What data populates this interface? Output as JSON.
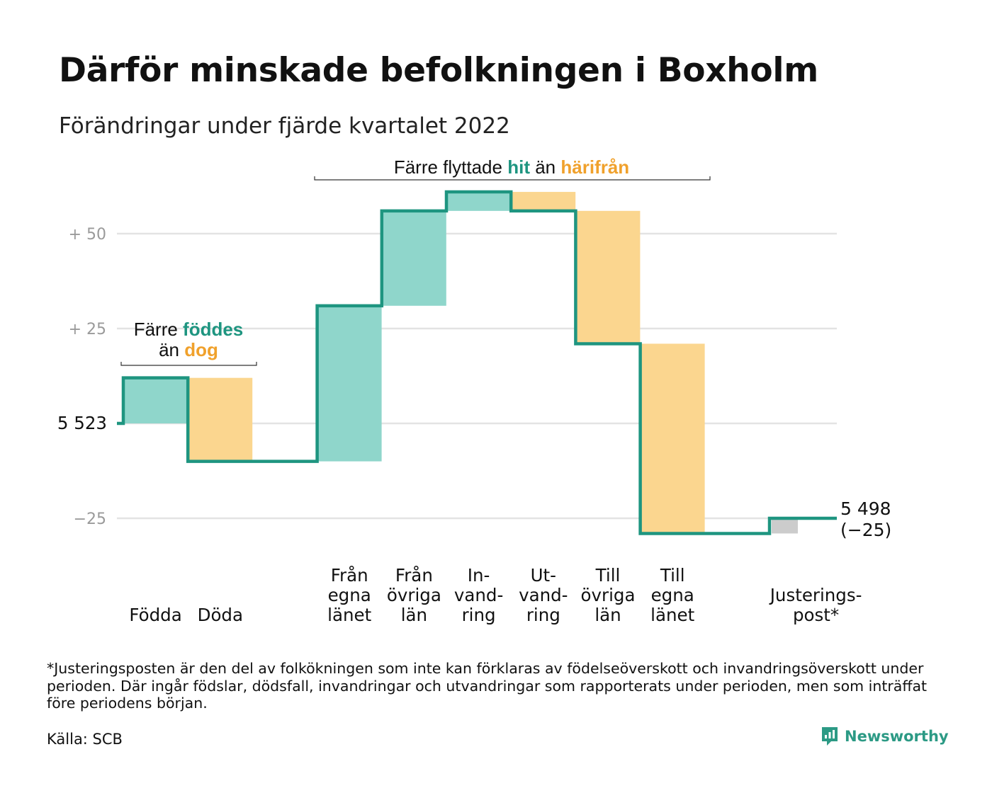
{
  "title": "Därför minskade befolkningen i Boxholm",
  "subtitle": "Förändringar under fjärde kvartalet 2022",
  "footnote": "*Justeringsposten är den del av folkökningen som inte kan förklaras av födelseöverskott och invandringsöverskott under perioden. Där ingår födslar, dödsfall, invandringar och utvandringar som rapporterats under perioden, men som inträffat före periodens början.",
  "source": "Källa: SCB",
  "logo": {
    "text": "Newsworthy"
  },
  "colors": {
    "increase": "#8fd6cb",
    "decrease": "#fbd68f",
    "adjustment": "#cccccc",
    "line": "#1e9580",
    "hit": "#1e9580",
    "harifran": "#f0a12c",
    "grid": "#e3e3e3"
  },
  "annotations": {
    "birth_group": {
      "line1_pre": "Färre ",
      "line1_em": "föddes",
      "line2_pre": "än ",
      "line2_em": "dog"
    },
    "migration_group": {
      "pre": "Färre flyttade ",
      "em1": "hit",
      "mid": " än ",
      "em2": "härifrån"
    }
  },
  "chart_data": {
    "type": "waterfall",
    "start_value": 5523,
    "start_label": "5 523",
    "end_label_line1": "5 498",
    "end_label_line2": "(−25)",
    "total_change": -25,
    "ylim": [
      -29,
      62
    ],
    "yticks": [
      {
        "value": 50,
        "label": "+ 50"
      },
      {
        "value": 25,
        "label": "+ 25"
      },
      {
        "value": 0,
        "label": ""
      },
      {
        "value": -25,
        "label": "−25"
      }
    ],
    "steps": [
      {
        "label_lines": [
          "",
          "",
          "Födda"
        ],
        "change": 12,
        "kind": "increase"
      },
      {
        "label_lines": [
          "",
          "",
          "Döda"
        ],
        "change": -22,
        "kind": "decrease"
      },
      {
        "label_lines": [
          "",
          "",
          ""
        ],
        "change": 0,
        "kind": "none"
      },
      {
        "label_lines": [
          "Från",
          "egna",
          "länet"
        ],
        "change": 41,
        "kind": "increase"
      },
      {
        "label_lines": [
          "Från",
          "övriga",
          "län"
        ],
        "change": 25,
        "kind": "increase"
      },
      {
        "label_lines": [
          "In-",
          "vand-",
          "ring"
        ],
        "change": 5,
        "kind": "increase"
      },
      {
        "label_lines": [
          "Ut-",
          "vand-",
          "ring"
        ],
        "change": -5,
        "kind": "decrease"
      },
      {
        "label_lines": [
          "Till",
          "övriga",
          "län"
        ],
        "change": -35,
        "kind": "decrease"
      },
      {
        "label_lines": [
          "Till",
          "egna",
          "länet"
        ],
        "change": -50,
        "kind": "decrease"
      },
      {
        "label_lines": [
          "",
          "",
          ""
        ],
        "change": 0,
        "kind": "none"
      },
      {
        "label_lines": [
          "",
          "Justerings-",
          "post*"
        ],
        "change": 4,
        "kind": "adjustment"
      }
    ]
  }
}
